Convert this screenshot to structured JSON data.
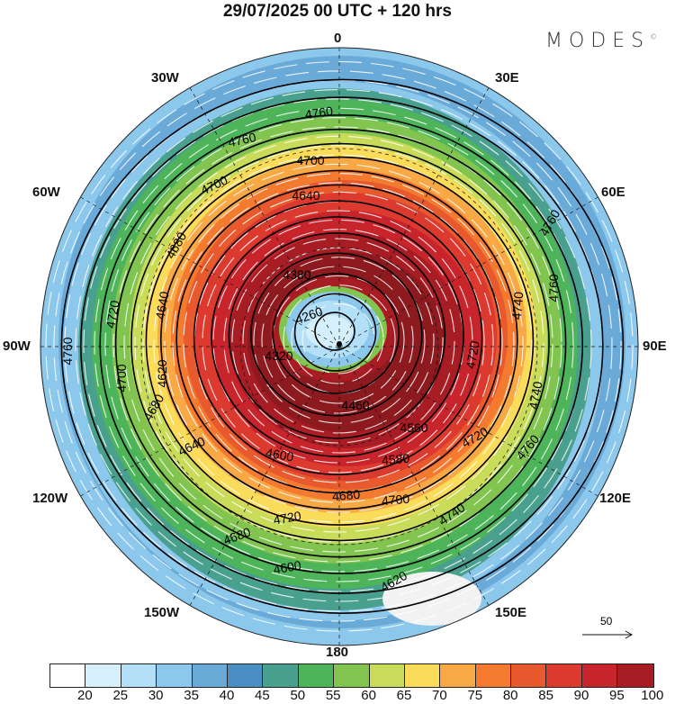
{
  "title": "29/07/2025  00 UTC  + 120 hrs",
  "logo": "MODES",
  "logo_mark": "©",
  "longitude_labels": {
    "n": "0",
    "ne30": "30E",
    "ne60": "60E",
    "e": "90E",
    "se120": "120E",
    "se150": "150E",
    "s": "180",
    "sw150": "150W",
    "sw120": "120W",
    "w": "90W",
    "nw60": "60W",
    "nw30": "30W"
  },
  "contour_labels": [
    "4760",
    "4760",
    "4700",
    "4640",
    "4700",
    "4680",
    "4640",
    "4720",
    "4700",
    "4760",
    "4620",
    "4680",
    "4640",
    "4600",
    "4580",
    "4560",
    "4680",
    "4700",
    "4720",
    "4740",
    "4760",
    "4740",
    "4720",
    "4680",
    "4600",
    "4620",
    "4720",
    "4740",
    "4760",
    "4760",
    "4260",
    "4380",
    "4320",
    "4460"
  ],
  "vector_reference": "50",
  "colorbar": {
    "ticks": [
      "20",
      "25",
      "30",
      "35",
      "40",
      "45",
      "50",
      "55",
      "60",
      "65",
      "70",
      "75",
      "80",
      "85",
      "90",
      "95",
      "100"
    ],
    "colors": [
      "#ffffff",
      "#d6f0fb",
      "#b3e0f7",
      "#8cc8ec",
      "#6aaad9",
      "#4a8fc4",
      "#4aa08f",
      "#4db45a",
      "#82c450",
      "#c9dc5a",
      "#fadc5a",
      "#f8a845",
      "#f47a30",
      "#e85a2e",
      "#dc3a2e",
      "#c8242c",
      "#a81c24",
      "#8c1a1e"
    ]
  }
}
